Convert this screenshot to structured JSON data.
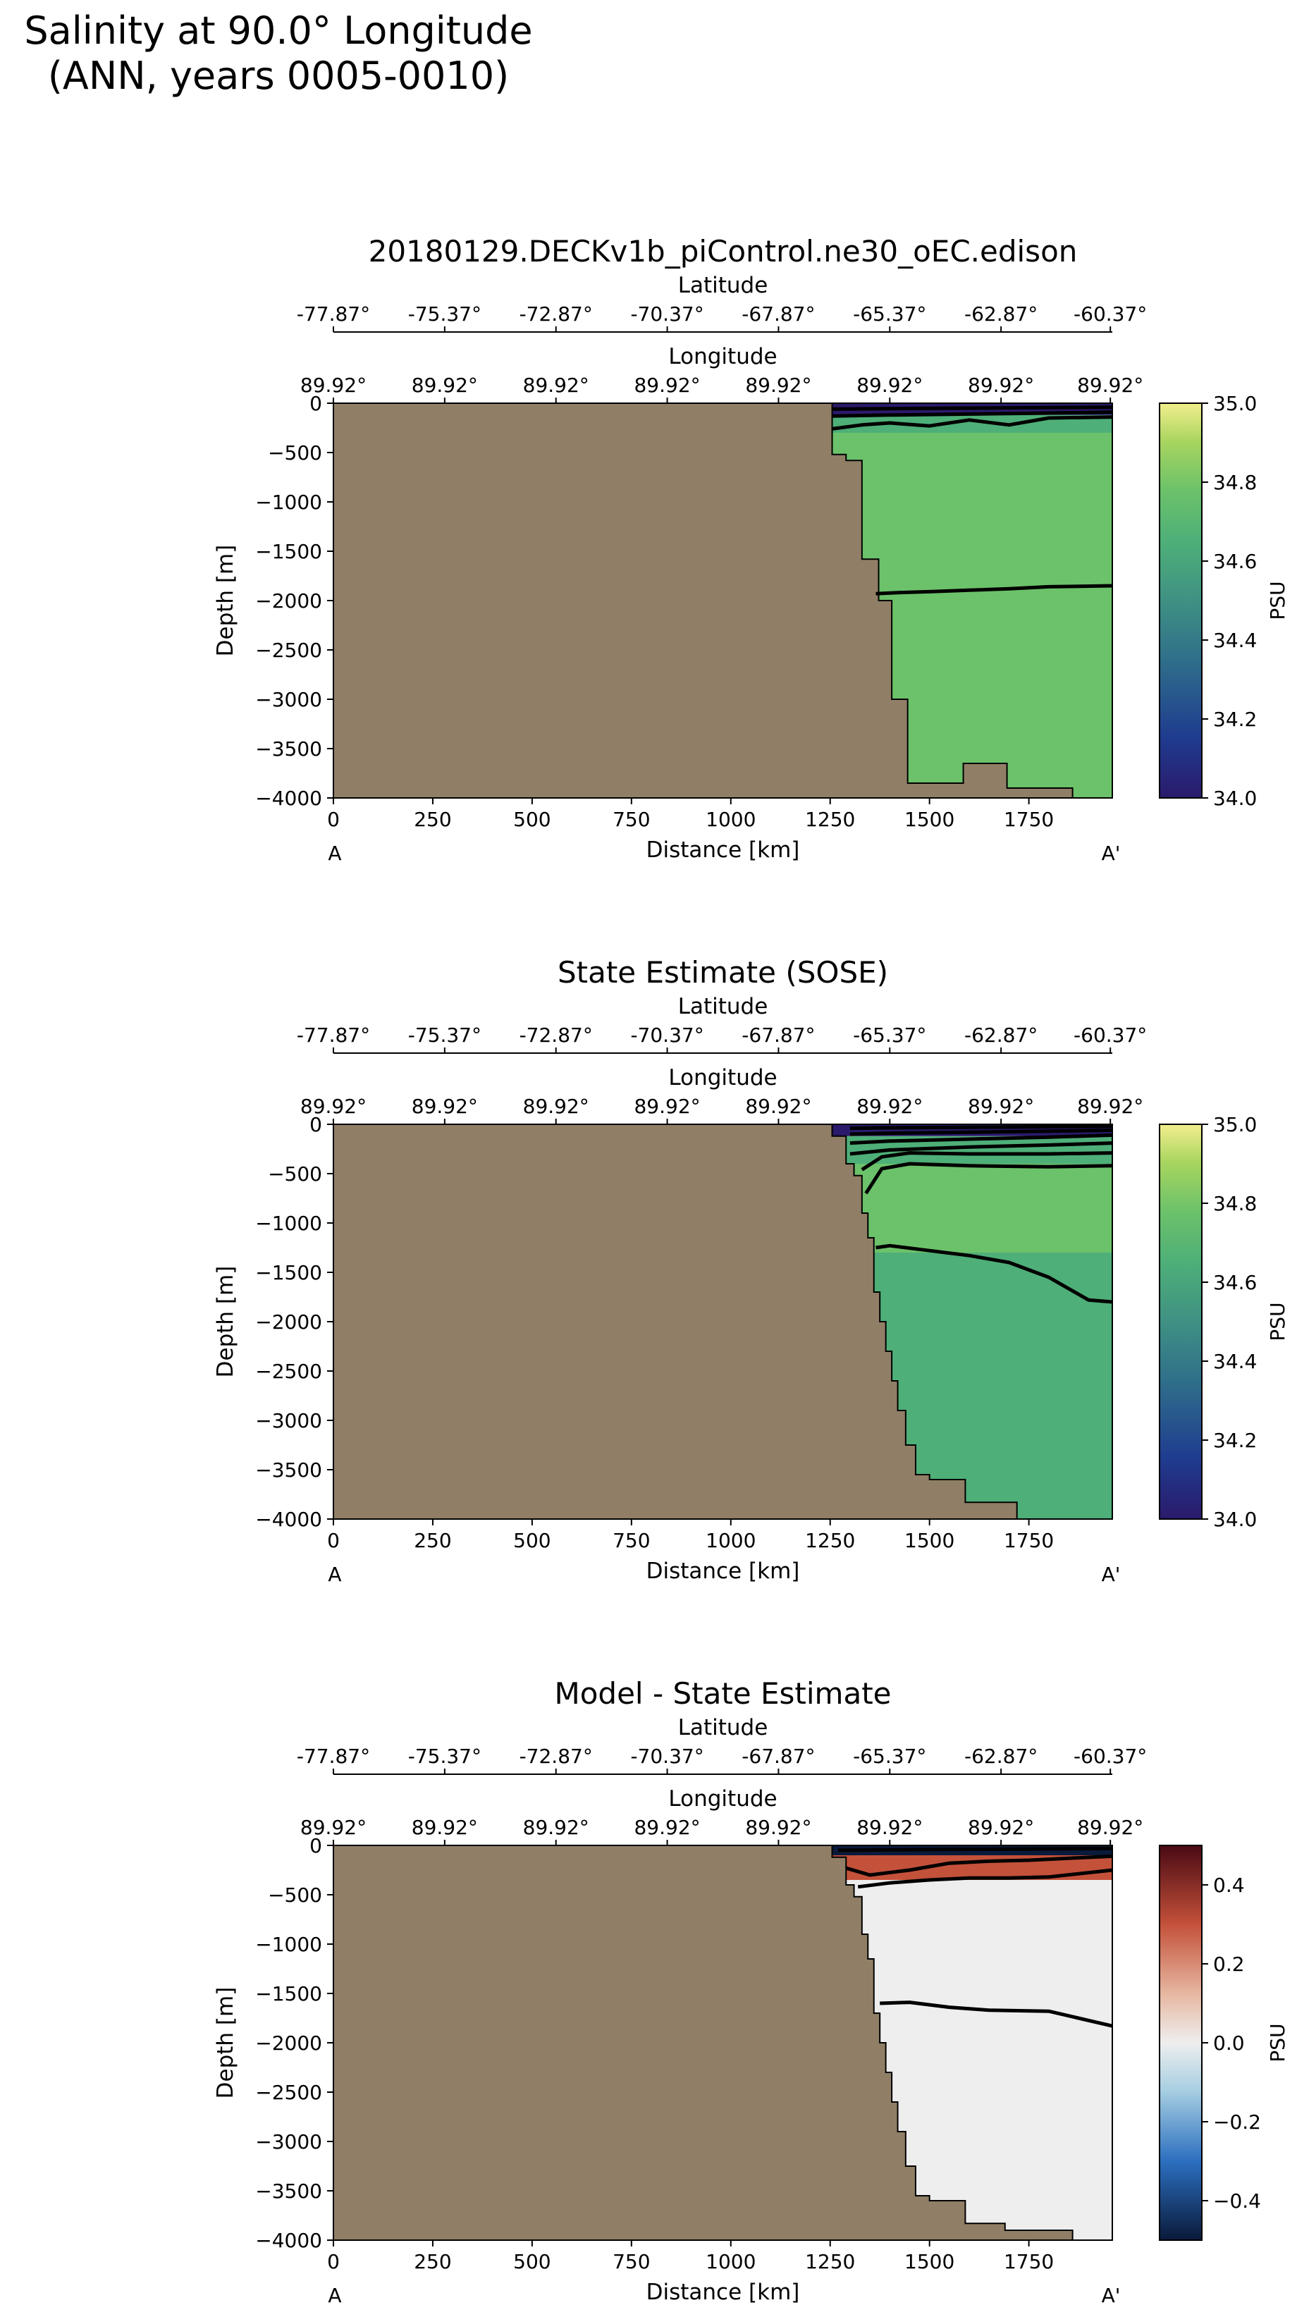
{
  "figure": {
    "suptitle_lines": [
      "Salinity at 90.0° Longitude",
      "(ANN, years 0005-0010)"
    ]
  },
  "colors": {
    "land": "#907f66",
    "contour": "#000000",
    "psu_colormap": [
      "#2b1a6b",
      "#1f3b8f",
      "#2f6f8a",
      "#3f9183",
      "#4eaf78",
      "#6cc26a",
      "#a6d45f",
      "#f2ee8c"
    ],
    "diff_colormap": [
      "#0a1a3a",
      "#2c6fbf",
      "#a8cfe2",
      "#eeeeee",
      "#e7b9a3",
      "#c4513a",
      "#4a0a14"
    ]
  },
  "chart_data": [
    {
      "type": "heatmap",
      "title": "20180129.DECKv1b_piControl.ne30_oEC.edison",
      "xlabel": "Distance [km]",
      "ylabel": "Depth [m]",
      "xlim": [
        0,
        1960
      ],
      "ylim": [
        -4000,
        0
      ],
      "x_ticks": [
        0,
        250,
        500,
        750,
        1000,
        1250,
        1500,
        1750
      ],
      "y_ticks": [
        0,
        -500,
        -1000,
        -1500,
        -2000,
        -2500,
        -3000,
        -3500,
        -4000
      ],
      "endpoint_labels": [
        "A",
        "A'"
      ],
      "top_axes": [
        {
          "label": "Latitude",
          "tick_positions_km": [
            0,
            280,
            560,
            840,
            1120,
            1400,
            1680,
            1955
          ],
          "ticks": [
            "-77.87°",
            "-75.37°",
            "-72.87°",
            "-70.37°",
            "-67.87°",
            "-65.37°",
            "-62.87°",
            "-60.37°"
          ]
        },
        {
          "label": "Longitude",
          "tick_positions_km": [
            0,
            280,
            560,
            840,
            1120,
            1400,
            1680,
            1955
          ],
          "ticks": [
            "89.92°",
            "89.92°",
            "89.92°",
            "89.92°",
            "89.92°",
            "89.92°",
            "89.92°",
            "89.92°"
          ]
        }
      ],
      "colorbar": {
        "label": "PSU",
        "range": [
          34.0,
          35.0
        ],
        "ticks": [
          "34.0",
          "34.2",
          "34.4",
          "34.6",
          "34.8",
          "35.0"
        ]
      },
      "bathymetry": [
        [
          1255,
          0
        ],
        [
          1255,
          -520
        ],
        [
          1290,
          -520
        ],
        [
          1290,
          -580
        ],
        [
          1330,
          -580
        ],
        [
          1330,
          -1580
        ],
        [
          1372,
          -1580
        ],
        [
          1372,
          -2000
        ],
        [
          1405,
          -2000
        ],
        [
          1405,
          -3000
        ],
        [
          1445,
          -3000
        ],
        [
          1445,
          -3850
        ],
        [
          1585,
          -3850
        ],
        [
          1585,
          -3650
        ],
        [
          1695,
          -3650
        ],
        [
          1695,
          -3900
        ],
        [
          1860,
          -3900
        ],
        [
          1860,
          -4000
        ]
      ],
      "value_layers": [
        {
          "depth": [
            0,
            -120
          ],
          "salinity": 34.05
        },
        {
          "depth": [
            -120,
            -300
          ],
          "salinity": 34.55
        },
        {
          "depth": [
            -300,
            -1900
          ],
          "salinity": 34.66
        },
        {
          "depth": [
            -1900,
            -4000
          ],
          "salinity": 34.72
        }
      ],
      "contour_depths": [
        {
          "x": [
            1255,
            1400,
            1600,
            1800,
            1960
          ],
          "y": [
            -60,
            -55,
            -50,
            -45,
            -40
          ]
        },
        {
          "x": [
            1255,
            1400,
            1600,
            1800,
            1960
          ],
          "y": [
            -130,
            -120,
            -110,
            -100,
            -90
          ]
        },
        {
          "x": [
            1255,
            1330,
            1400,
            1500,
            1600,
            1700,
            1800,
            1960
          ],
          "y": [
            -260,
            -220,
            -200,
            -230,
            -170,
            -220,
            -150,
            -140
          ]
        },
        {
          "x": [
            1365,
            1420,
            1500,
            1600,
            1700,
            1800,
            1960
          ],
          "y": [
            -1930,
            -1920,
            -1910,
            -1895,
            -1880,
            -1860,
            -1850
          ]
        }
      ]
    },
    {
      "type": "heatmap",
      "title": "State Estimate (SOSE)",
      "xlabel": "Distance [km]",
      "ylabel": "Depth [m]",
      "xlim": [
        0,
        1960
      ],
      "ylim": [
        -4000,
        0
      ],
      "x_ticks": [
        0,
        250,
        500,
        750,
        1000,
        1250,
        1500,
        1750
      ],
      "y_ticks": [
        0,
        -500,
        -1000,
        -1500,
        -2000,
        -2500,
        -3000,
        -3500,
        -4000
      ],
      "endpoint_labels": [
        "A",
        "A'"
      ],
      "top_axes": [
        {
          "label": "Latitude",
          "tick_positions_km": [
            0,
            280,
            560,
            840,
            1120,
            1400,
            1680,
            1955
          ],
          "ticks": [
            "-77.87°",
            "-75.37°",
            "-72.87°",
            "-70.37°",
            "-67.87°",
            "-65.37°",
            "-62.87°",
            "-60.37°"
          ]
        },
        {
          "label": "Longitude",
          "tick_positions_km": [
            0,
            280,
            560,
            840,
            1120,
            1400,
            1680,
            1955
          ],
          "ticks": [
            "89.92°",
            "89.92°",
            "89.92°",
            "89.92°",
            "89.92°",
            "89.92°",
            "89.92°",
            "89.92°"
          ]
        }
      ],
      "colorbar": {
        "label": "PSU",
        "range": [
          34.0,
          35.0
        ],
        "ticks": [
          "34.0",
          "34.2",
          "34.4",
          "34.6",
          "34.8",
          "35.0"
        ]
      },
      "bathymetry": [
        [
          1255,
          0
        ],
        [
          1255,
          -120
        ],
        [
          1290,
          -120
        ],
        [
          1290,
          -400
        ],
        [
          1310,
          -400
        ],
        [
          1310,
          -520
        ],
        [
          1330,
          -520
        ],
        [
          1330,
          -900
        ],
        [
          1345,
          -900
        ],
        [
          1345,
          -1150
        ],
        [
          1360,
          -1150
        ],
        [
          1360,
          -1700
        ],
        [
          1375,
          -1700
        ],
        [
          1375,
          -2000
        ],
        [
          1390,
          -2000
        ],
        [
          1390,
          -2300
        ],
        [
          1405,
          -2300
        ],
        [
          1405,
          -2600
        ],
        [
          1420,
          -2600
        ],
        [
          1420,
          -2900
        ],
        [
          1440,
          -2900
        ],
        [
          1440,
          -3250
        ],
        [
          1465,
          -3250
        ],
        [
          1465,
          -3550
        ],
        [
          1500,
          -3550
        ],
        [
          1500,
          -3600
        ],
        [
          1590,
          -3600
        ],
        [
          1590,
          -3830
        ],
        [
          1720,
          -3830
        ],
        [
          1720,
          -4000
        ]
      ],
      "value_layers": [
        {
          "depth": [
            0,
            -120
          ],
          "salinity": 34.05
        },
        {
          "depth": [
            -120,
            -400
          ],
          "salinity": 34.6
        },
        {
          "depth": [
            -400,
            -1300
          ],
          "salinity": 34.72
        },
        {
          "depth": [
            -1300,
            -4000
          ],
          "salinity": 34.64
        }
      ],
      "contour_depths": [
        {
          "x": [
            1300,
            1400,
            1600,
            1800,
            1960
          ],
          "y": [
            -40,
            -35,
            -30,
            -25,
            -20
          ]
        },
        {
          "x": [
            1300,
            1400,
            1600,
            1800,
            1960
          ],
          "y": [
            -100,
            -90,
            -80,
            -70,
            -60
          ]
        },
        {
          "x": [
            1300,
            1400,
            1600,
            1800,
            1960
          ],
          "y": [
            -190,
            -170,
            -150,
            -130,
            -110
          ]
        },
        {
          "x": [
            1300,
            1400,
            1600,
            1800,
            1960
          ],
          "y": [
            -300,
            -260,
            -230,
            -210,
            -190
          ]
        },
        {
          "x": [
            1330,
            1380,
            1450,
            1600,
            1800,
            1960
          ],
          "y": [
            -460,
            -330,
            -290,
            -300,
            -300,
            -290
          ]
        },
        {
          "x": [
            1340,
            1380,
            1450,
            1600,
            1800,
            1960
          ],
          "y": [
            -700,
            -450,
            -400,
            -420,
            -430,
            -420
          ]
        },
        {
          "x": [
            1365,
            1400,
            1500,
            1600,
            1700,
            1800,
            1900,
            1960
          ],
          "y": [
            -1250,
            -1230,
            -1280,
            -1330,
            -1400,
            -1550,
            -1780,
            -1800
          ]
        }
      ]
    },
    {
      "type": "heatmap",
      "title": "Model - State Estimate",
      "xlabel": "Distance [km]",
      "ylabel": "Depth [m]",
      "xlim": [
        0,
        1960
      ],
      "ylim": [
        -4000,
        0
      ],
      "x_ticks": [
        0,
        250,
        500,
        750,
        1000,
        1250,
        1500,
        1750
      ],
      "y_ticks": [
        0,
        -500,
        -1000,
        -1500,
        -2000,
        -2500,
        -3000,
        -3500,
        -4000
      ],
      "endpoint_labels": [
        "A",
        "A'"
      ],
      "top_axes": [
        {
          "label": "Latitude",
          "tick_positions_km": [
            0,
            280,
            560,
            840,
            1120,
            1400,
            1680,
            1955
          ],
          "ticks": [
            "-77.87°",
            "-75.37°",
            "-72.87°",
            "-70.37°",
            "-67.87°",
            "-65.37°",
            "-62.87°",
            "-60.37°"
          ]
        },
        {
          "label": "Longitude",
          "tick_positions_km": [
            0,
            280,
            560,
            840,
            1120,
            1400,
            1680,
            1955
          ],
          "ticks": [
            "89.92°",
            "89.92°",
            "89.92°",
            "89.92°",
            "89.92°",
            "89.92°",
            "89.92°",
            "89.92°"
          ]
        }
      ],
      "colorbar": {
        "label": "PSU",
        "range": [
          -0.5,
          0.5
        ],
        "ticks": [
          "0.4",
          "0.2",
          "0.0",
          "−0.2",
          "−0.4"
        ]
      },
      "bathymetry": [
        [
          1255,
          0
        ],
        [
          1255,
          -120
        ],
        [
          1290,
          -120
        ],
        [
          1290,
          -400
        ],
        [
          1310,
          -400
        ],
        [
          1310,
          -520
        ],
        [
          1330,
          -520
        ],
        [
          1330,
          -900
        ],
        [
          1345,
          -900
        ],
        [
          1345,
          -1150
        ],
        [
          1360,
          -1150
        ],
        [
          1360,
          -1700
        ],
        [
          1375,
          -1700
        ],
        [
          1375,
          -2000
        ],
        [
          1390,
          -2000
        ],
        [
          1390,
          -2300
        ],
        [
          1405,
          -2300
        ],
        [
          1405,
          -2600
        ],
        [
          1420,
          -2600
        ],
        [
          1420,
          -2900
        ],
        [
          1440,
          -2900
        ],
        [
          1440,
          -3250
        ],
        [
          1465,
          -3250
        ],
        [
          1465,
          -3550
        ],
        [
          1500,
          -3550
        ],
        [
          1500,
          -3600
        ],
        [
          1590,
          -3600
        ],
        [
          1590,
          -3830
        ],
        [
          1690,
          -3830
        ],
        [
          1690,
          -3900
        ],
        [
          1860,
          -3900
        ],
        [
          1860,
          -4000
        ]
      ],
      "value_layers": [
        {
          "depth": [
            0,
            -100
          ],
          "salinity_diff": -0.45
        },
        {
          "depth": [
            -100,
            -350
          ],
          "salinity_diff": 0.25
        },
        {
          "depth": [
            -350,
            -1600
          ],
          "salinity_diff": -0.04
        },
        {
          "depth": [
            -1600,
            -4000
          ],
          "salinity_diff": 0.03
        }
      ],
      "contour_depths": [
        {
          "x": [
            1270,
            1400,
            1600,
            1800,
            1960
          ],
          "y": [
            -50,
            -45,
            -40,
            -35,
            -30
          ]
        },
        {
          "x": [
            1290,
            1350,
            1450,
            1550,
            1650,
            1750,
            1850,
            1960
          ],
          "y": [
            -230,
            -300,
            -250,
            -180,
            -160,
            -150,
            -130,
            -110
          ]
        },
        {
          "x": [
            1320,
            1400,
            1500,
            1600,
            1700,
            1800,
            1960
          ],
          "y": [
            -420,
            -380,
            -350,
            -330,
            -330,
            -320,
            -250
          ]
        },
        {
          "x": [
            1375,
            1450,
            1550,
            1650,
            1800,
            1960
          ],
          "y": [
            -1600,
            -1590,
            -1640,
            -1670,
            -1680,
            -1830
          ]
        }
      ]
    }
  ]
}
